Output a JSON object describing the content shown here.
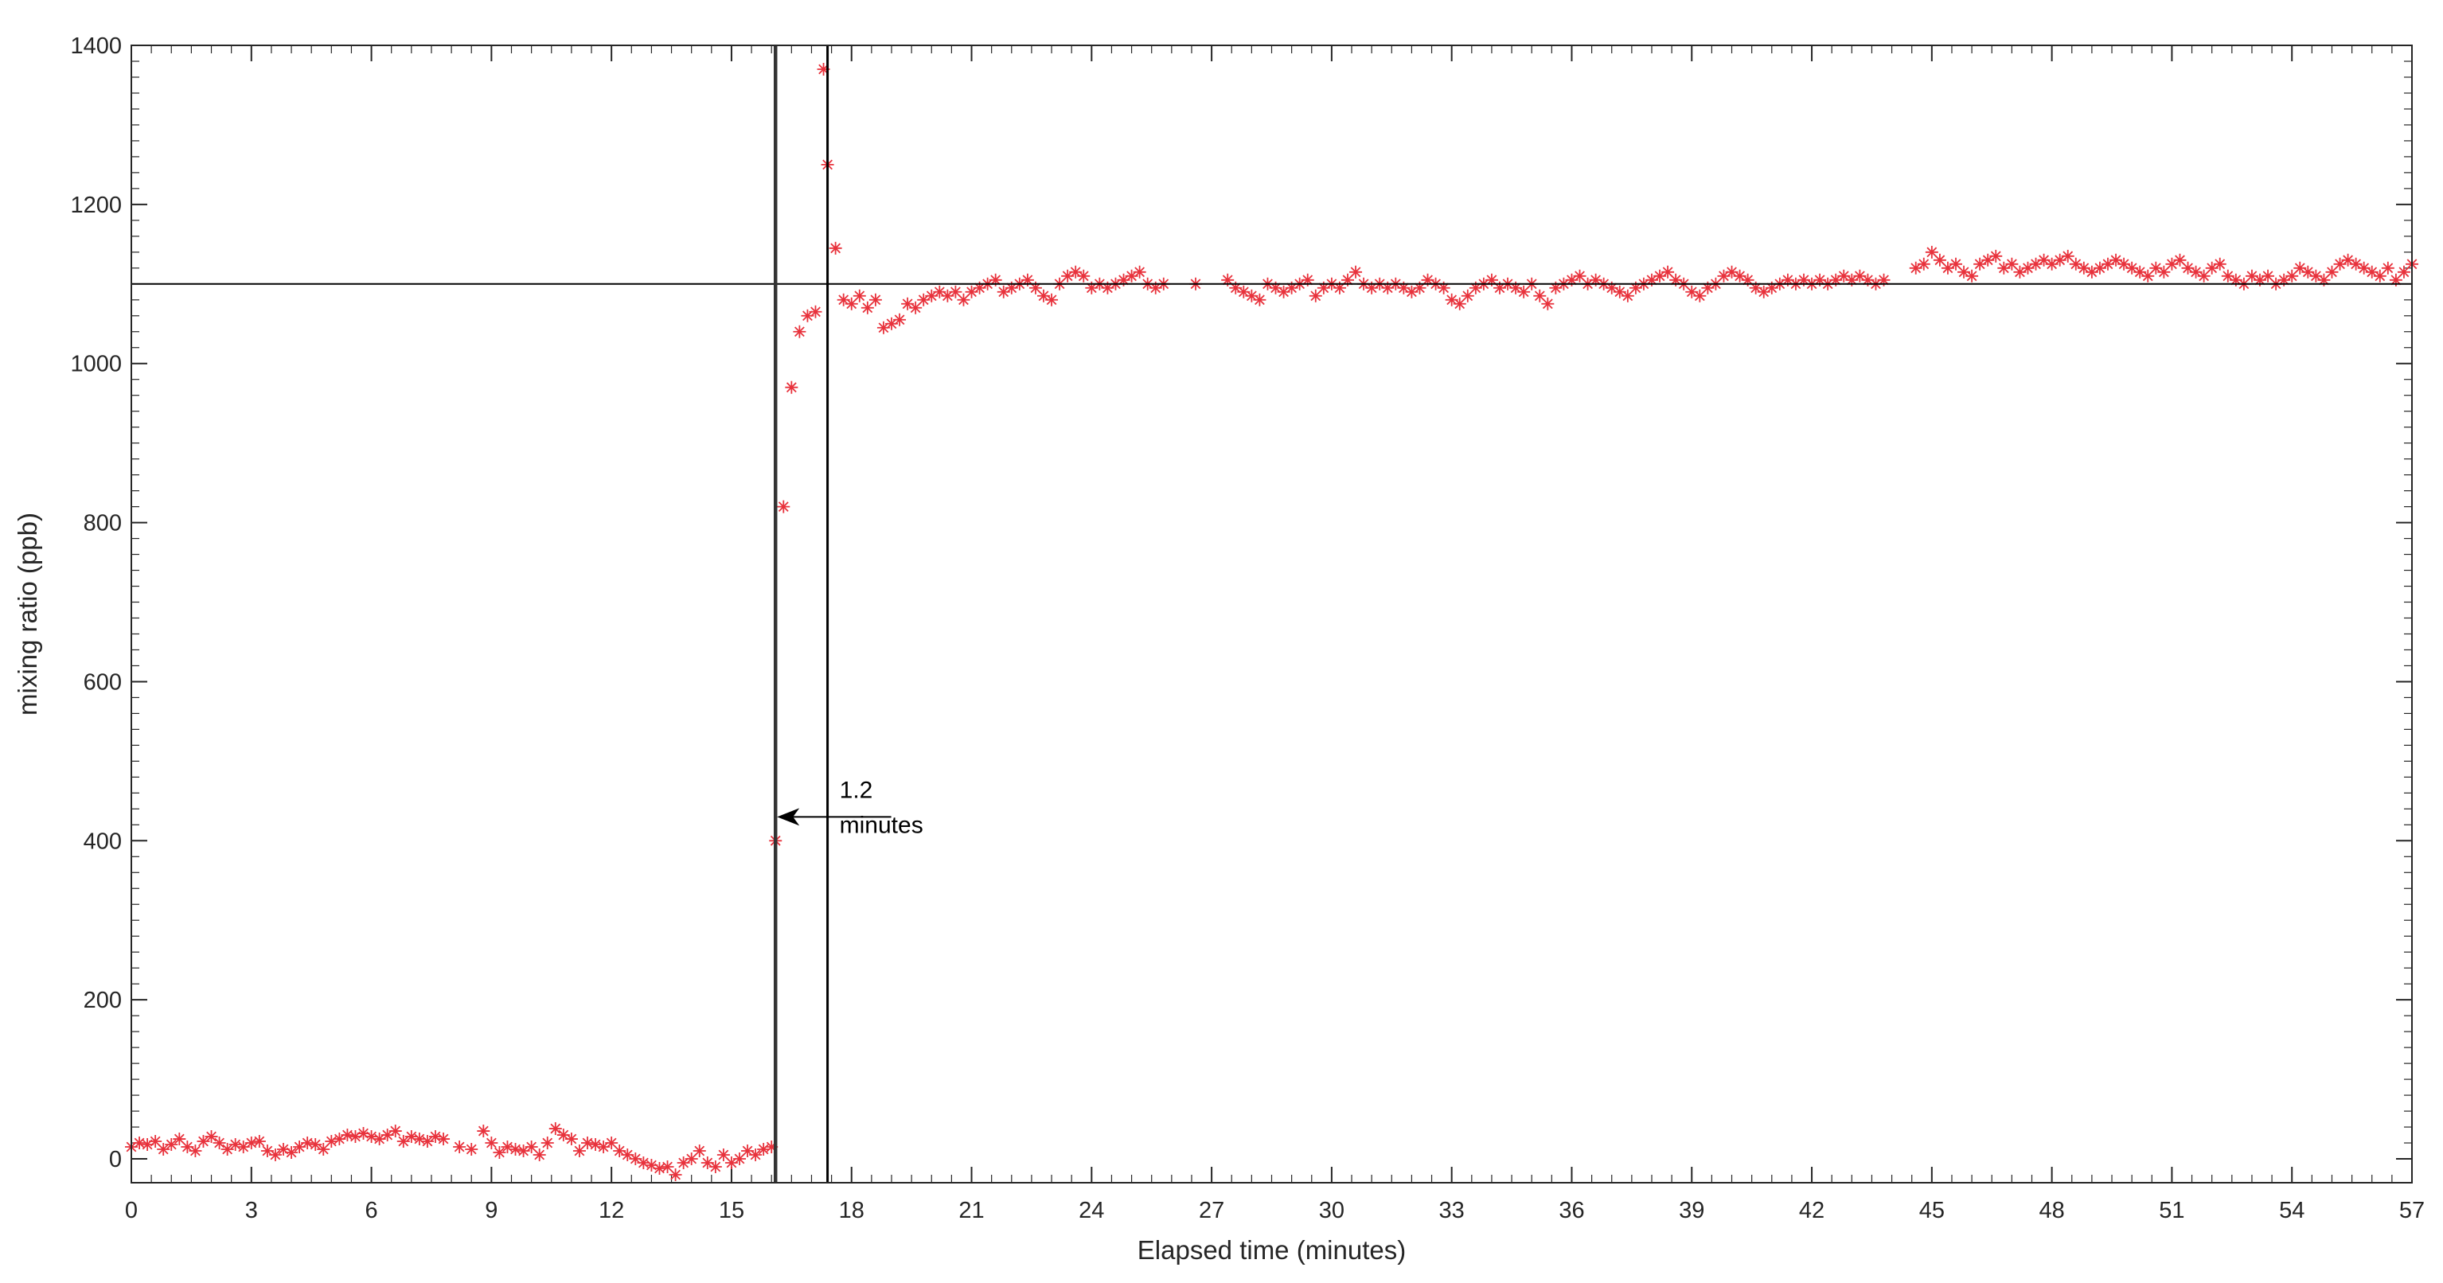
{
  "chart_data": {
    "type": "scatter",
    "title": "",
    "xlabel": "Elapsed time (minutes)",
    "ylabel": "mixing ratio (ppb)",
    "xlim": [
      0,
      57
    ],
    "ylim": [
      -30,
      1400
    ],
    "xticks": [
      0,
      3,
      6,
      9,
      12,
      15,
      18,
      21,
      24,
      27,
      30,
      33,
      36,
      39,
      42,
      45,
      48,
      51,
      54,
      57
    ],
    "yticks": [
      0,
      200,
      400,
      600,
      800,
      1000,
      1200,
      1400
    ],
    "marker": "*",
    "marker_color": "#e8323c",
    "grid": false,
    "reference_lines": {
      "horizontal_y": 1100,
      "vertical_x": [
        16.1,
        17.4
      ]
    },
    "annotation": {
      "text_line1": "1.2",
      "text_line2": "minutes",
      "arrow_from": [
        17.4,
        430
      ],
      "arrow_to": [
        16.1,
        430
      ],
      "text_x": 17.7,
      "text_y": 430
    },
    "series": [
      {
        "values": [
          [
            0.0,
            15
          ],
          [
            0.2,
            20
          ],
          [
            0.4,
            18
          ],
          [
            0.6,
            22
          ],
          [
            0.8,
            12
          ],
          [
            1.0,
            18
          ],
          [
            1.2,
            25
          ],
          [
            1.4,
            15
          ],
          [
            1.6,
            10
          ],
          [
            1.8,
            22
          ],
          [
            2.0,
            28
          ],
          [
            2.2,
            20
          ],
          [
            2.4,
            12
          ],
          [
            2.6,
            18
          ],
          [
            2.8,
            15
          ],
          [
            3.0,
            20
          ],
          [
            3.2,
            22
          ],
          [
            3.4,
            10
          ],
          [
            3.6,
            5
          ],
          [
            3.8,
            12
          ],
          [
            4.0,
            8
          ],
          [
            4.2,
            15
          ],
          [
            4.4,
            20
          ],
          [
            4.6,
            18
          ],
          [
            4.8,
            12
          ],
          [
            5.0,
            22
          ],
          [
            5.2,
            25
          ],
          [
            5.4,
            30
          ],
          [
            5.6,
            28
          ],
          [
            5.8,
            32
          ],
          [
            6.0,
            28
          ],
          [
            6.2,
            25
          ],
          [
            6.4,
            30
          ],
          [
            6.6,
            35
          ],
          [
            6.8,
            22
          ],
          [
            7.0,
            28
          ],
          [
            7.2,
            25
          ],
          [
            7.4,
            22
          ],
          [
            7.6,
            28
          ],
          [
            7.8,
            25
          ],
          [
            8.2,
            15
          ],
          [
            8.5,
            12
          ],
          [
            8.8,
            35
          ],
          [
            9.0,
            20
          ],
          [
            9.2,
            8
          ],
          [
            9.4,
            15
          ],
          [
            9.6,
            12
          ],
          [
            9.8,
            10
          ],
          [
            10.0,
            15
          ],
          [
            10.2,
            5
          ],
          [
            10.4,
            20
          ],
          [
            10.6,
            38
          ],
          [
            10.8,
            30
          ],
          [
            11.0,
            25
          ],
          [
            11.2,
            10
          ],
          [
            11.4,
            20
          ],
          [
            11.6,
            18
          ],
          [
            11.8,
            15
          ],
          [
            12.0,
            20
          ],
          [
            12.2,
            10
          ],
          [
            12.4,
            5
          ],
          [
            12.6,
            0
          ],
          [
            12.8,
            -5
          ],
          [
            13.0,
            -8
          ],
          [
            13.2,
            -12
          ],
          [
            13.4,
            -10
          ],
          [
            13.6,
            -20
          ],
          [
            13.8,
            -5
          ],
          [
            14.0,
            0
          ],
          [
            14.2,
            10
          ],
          [
            14.4,
            -5
          ],
          [
            14.6,
            -10
          ],
          [
            14.8,
            5
          ],
          [
            15.0,
            -5
          ],
          [
            15.2,
            0
          ],
          [
            15.4,
            10
          ],
          [
            15.6,
            5
          ],
          [
            15.8,
            12
          ],
          [
            16.0,
            15
          ],
          [
            16.1,
            400
          ],
          [
            16.3,
            820
          ],
          [
            16.5,
            970
          ],
          [
            16.7,
            1040
          ],
          [
            16.9,
            1060
          ],
          [
            17.1,
            1065
          ],
          [
            17.3,
            1370
          ],
          [
            17.4,
            1250
          ],
          [
            17.6,
            1145
          ],
          [
            17.8,
            1080
          ],
          [
            18.0,
            1075
          ],
          [
            18.2,
            1085
          ],
          [
            18.4,
            1070
          ],
          [
            18.6,
            1080
          ],
          [
            18.8,
            1045
          ],
          [
            19.0,
            1050
          ],
          [
            19.2,
            1055
          ],
          [
            19.4,
            1075
          ],
          [
            19.6,
            1070
          ],
          [
            19.8,
            1080
          ],
          [
            20.0,
            1085
          ],
          [
            20.2,
            1090
          ],
          [
            20.4,
            1085
          ],
          [
            20.6,
            1090
          ],
          [
            20.8,
            1080
          ],
          [
            21.0,
            1090
          ],
          [
            21.2,
            1095
          ],
          [
            21.4,
            1100
          ],
          [
            21.6,
            1105
          ],
          [
            21.8,
            1090
          ],
          [
            22.0,
            1095
          ],
          [
            22.2,
            1100
          ],
          [
            22.4,
            1105
          ],
          [
            22.6,
            1095
          ],
          [
            22.8,
            1085
          ],
          [
            23.0,
            1080
          ],
          [
            23.2,
            1100
          ],
          [
            23.4,
            1110
          ],
          [
            23.6,
            1115
          ],
          [
            23.8,
            1110
          ],
          [
            24.0,
            1095
          ],
          [
            24.2,
            1100
          ],
          [
            24.4,
            1095
          ],
          [
            24.6,
            1100
          ],
          [
            24.8,
            1105
          ],
          [
            25.0,
            1110
          ],
          [
            25.2,
            1115
          ],
          [
            25.4,
            1100
          ],
          [
            25.6,
            1095
          ],
          [
            25.8,
            1100
          ],
          [
            26.6,
            1100
          ],
          [
            27.4,
            1105
          ],
          [
            27.6,
            1095
          ],
          [
            27.8,
            1090
          ],
          [
            28.0,
            1085
          ],
          [
            28.2,
            1080
          ],
          [
            28.4,
            1100
          ],
          [
            28.6,
            1095
          ],
          [
            28.8,
            1090
          ],
          [
            29.0,
            1095
          ],
          [
            29.2,
            1100
          ],
          [
            29.4,
            1105
          ],
          [
            29.6,
            1085
          ],
          [
            29.8,
            1095
          ],
          [
            30.0,
            1100
          ],
          [
            30.2,
            1095
          ],
          [
            30.4,
            1105
          ],
          [
            30.6,
            1115
          ],
          [
            30.8,
            1100
          ],
          [
            31.0,
            1095
          ],
          [
            31.2,
            1100
          ],
          [
            31.4,
            1095
          ],
          [
            31.6,
            1100
          ],
          [
            31.8,
            1095
          ],
          [
            32.0,
            1090
          ],
          [
            32.2,
            1095
          ],
          [
            32.4,
            1105
          ],
          [
            32.6,
            1100
          ],
          [
            32.8,
            1095
          ],
          [
            33.0,
            1080
          ],
          [
            33.2,
            1075
          ],
          [
            33.4,
            1085
          ],
          [
            33.6,
            1095
          ],
          [
            33.8,
            1100
          ],
          [
            34.0,
            1105
          ],
          [
            34.2,
            1095
          ],
          [
            34.4,
            1100
          ],
          [
            34.6,
            1095
          ],
          [
            34.8,
            1090
          ],
          [
            35.0,
            1100
          ],
          [
            35.2,
            1085
          ],
          [
            35.4,
            1075
          ],
          [
            35.6,
            1095
          ],
          [
            35.8,
            1100
          ],
          [
            36.0,
            1105
          ],
          [
            36.2,
            1110
          ],
          [
            36.4,
            1100
          ],
          [
            36.6,
            1105
          ],
          [
            36.8,
            1100
          ],
          [
            37.0,
            1095
          ],
          [
            37.2,
            1090
          ],
          [
            37.4,
            1085
          ],
          [
            37.6,
            1095
          ],
          [
            37.8,
            1100
          ],
          [
            38.0,
            1105
          ],
          [
            38.2,
            1110
          ],
          [
            38.4,
            1115
          ],
          [
            38.6,
            1105
          ],
          [
            38.8,
            1100
          ],
          [
            39.0,
            1090
          ],
          [
            39.2,
            1085
          ],
          [
            39.4,
            1095
          ],
          [
            39.6,
            1100
          ],
          [
            39.8,
            1110
          ],
          [
            40.0,
            1115
          ],
          [
            40.2,
            1110
          ],
          [
            40.4,
            1105
          ],
          [
            40.6,
            1095
          ],
          [
            40.8,
            1090
          ],
          [
            41.0,
            1095
          ],
          [
            41.2,
            1100
          ],
          [
            41.4,
            1105
          ],
          [
            41.6,
            1100
          ],
          [
            41.8,
            1105
          ],
          [
            42.0,
            1100
          ],
          [
            42.2,
            1105
          ],
          [
            42.4,
            1100
          ],
          [
            42.6,
            1105
          ],
          [
            42.8,
            1110
          ],
          [
            43.0,
            1105
          ],
          [
            43.2,
            1110
          ],
          [
            43.4,
            1105
          ],
          [
            43.6,
            1100
          ],
          [
            43.8,
            1105
          ],
          [
            44.6,
            1120
          ],
          [
            44.8,
            1125
          ],
          [
            45.0,
            1140
          ],
          [
            45.2,
            1130
          ],
          [
            45.4,
            1120
          ],
          [
            45.6,
            1125
          ],
          [
            45.8,
            1115
          ],
          [
            46.0,
            1110
          ],
          [
            46.2,
            1125
          ],
          [
            46.4,
            1130
          ],
          [
            46.6,
            1135
          ],
          [
            46.8,
            1120
          ],
          [
            47.0,
            1125
          ],
          [
            47.2,
            1115
          ],
          [
            47.4,
            1120
          ],
          [
            47.6,
            1125
          ],
          [
            47.8,
            1130
          ],
          [
            48.0,
            1125
          ],
          [
            48.2,
            1130
          ],
          [
            48.4,
            1135
          ],
          [
            48.6,
            1125
          ],
          [
            48.8,
            1120
          ],
          [
            49.0,
            1115
          ],
          [
            49.2,
            1120
          ],
          [
            49.4,
            1125
          ],
          [
            49.6,
            1130
          ],
          [
            49.8,
            1125
          ],
          [
            50.0,
            1120
          ],
          [
            50.2,
            1115
          ],
          [
            50.4,
            1110
          ],
          [
            50.6,
            1120
          ],
          [
            50.8,
            1115
          ],
          [
            51.0,
            1125
          ],
          [
            51.2,
            1130
          ],
          [
            51.4,
            1120
          ],
          [
            51.6,
            1115
          ],
          [
            51.8,
            1110
          ],
          [
            52.0,
            1120
          ],
          [
            52.2,
            1125
          ],
          [
            52.4,
            1110
          ],
          [
            52.6,
            1105
          ],
          [
            52.8,
            1100
          ],
          [
            53.0,
            1110
          ],
          [
            53.2,
            1105
          ],
          [
            53.4,
            1110
          ],
          [
            53.6,
            1100
          ],
          [
            53.8,
            1105
          ],
          [
            54.0,
            1110
          ],
          [
            54.2,
            1120
          ],
          [
            54.4,
            1115
          ],
          [
            54.6,
            1110
          ],
          [
            54.8,
            1105
          ],
          [
            55.0,
            1115
          ],
          [
            55.2,
            1125
          ],
          [
            55.4,
            1130
          ],
          [
            55.6,
            1125
          ],
          [
            55.8,
            1120
          ],
          [
            56.0,
            1115
          ],
          [
            56.2,
            1110
          ],
          [
            56.4,
            1120
          ],
          [
            56.6,
            1105
          ],
          [
            56.8,
            1115
          ],
          [
            57.0,
            1125
          ]
        ]
      }
    ]
  }
}
